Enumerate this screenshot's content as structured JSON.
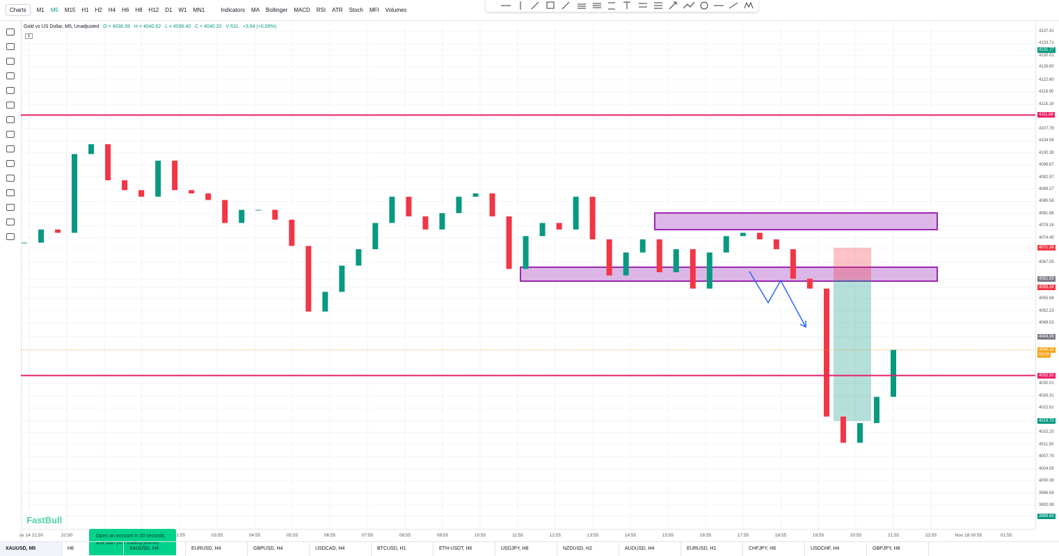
{
  "toolbar": {
    "charts": "Charts",
    "timeframes": [
      "M1",
      "M5",
      "M15",
      "H1",
      "H2",
      "H4",
      "H6",
      "H8",
      "H12",
      "D1",
      "W1",
      "MN1"
    ],
    "active_timeframe": "M5",
    "indicators_button": "Indicators",
    "indicators": [
      "MA",
      "Bollinger",
      "MACD",
      "RSI",
      "ATR",
      "Stoch",
      "MFI",
      "Volumes"
    ]
  },
  "legend": {
    "symbol": "Gold vs US Dollar, M5, Unadjusted",
    "open": "O = 4036.59",
    "high": "H = 4040.62",
    "low": "L = 4036.40",
    "close": "C = 4040.32",
    "volume": "V 631",
    "change": "+3.64 (+0.09%)",
    "badge": "1"
  },
  "price_axis": [
    {
      "label": "4137.41"
    },
    {
      "label": "4133.71"
    },
    {
      "label": "4131.77",
      "color": "#089981"
    },
    {
      "label": "4130.01"
    },
    {
      "label": "4126.60"
    },
    {
      "label": "4122.60"
    },
    {
      "label": "4118.90"
    },
    {
      "label": "4115.19"
    },
    {
      "label": "4111.88",
      "color": "#e91e63"
    },
    {
      "label": "4107.78"
    },
    {
      "label": "4104.08"
    },
    {
      "label": "4100.38"
    },
    {
      "label": "4096.67"
    },
    {
      "label": "4092.97"
    },
    {
      "label": "4089.27"
    },
    {
      "label": "4085.56"
    },
    {
      "label": "4081.86"
    },
    {
      "label": "4078.16"
    },
    {
      "label": "4074.45"
    },
    {
      "label": "4071.36",
      "color": "#f23645"
    },
    {
      "label": "4067.05"
    },
    {
      "label": "4061.89",
      "color": "#787b86"
    },
    {
      "label": "4059.34",
      "color": "#f23645"
    },
    {
      "label": "4055.94"
    },
    {
      "label": "4052.23"
    },
    {
      "label": "4048.53"
    },
    {
      "label": "4044.38",
      "color": "#787b86"
    },
    {
      "label": "4040.32",
      "color": "#f7a21b"
    },
    {
      "label": "4032.50",
      "color": "#e91e63"
    },
    {
      "label": "4030.01"
    },
    {
      "label": "4026.31"
    },
    {
      "label": "4022.61"
    },
    {
      "label": "4018.70",
      "color": "#089981"
    },
    {
      "label": "4015.20"
    },
    {
      "label": "4011.50"
    },
    {
      "label": "4007.79"
    },
    {
      "label": "4004.09"
    },
    {
      "label": "4000.39"
    },
    {
      "label": "3996.68"
    },
    {
      "label": "3992.98"
    },
    {
      "label": "3989.63",
      "color": "#089981"
    }
  ],
  "countdown": "03:09",
  "time_axis": [
    "ov 14 21:50",
    "22:50",
    "02:55",
    "03:55",
    "04:55",
    "05:55",
    "06:55",
    "07:55",
    "08:55",
    "09:55",
    "10:55",
    "11:55",
    "12:55",
    "13:55",
    "14:55",
    "15:55",
    "16:55",
    "17:55",
    "18:55",
    "19:55",
    "20:55",
    "21:55",
    "22:55",
    "Nov 18 00:55",
    "01:55"
  ],
  "candles": {
    "closes": [
      4073,
      4077,
      4076,
      4100,
      4103,
      4092,
      4089,
      4087,
      4098,
      4089,
      4088,
      4086,
      4079,
      4083,
      4083,
      4080,
      4072,
      4052,
      4058,
      4066,
      4071,
      4079,
      4087,
      4081,
      4077,
      4082,
      4087,
      4088,
      4081,
      4065,
      4075,
      4079,
      4077,
      4087,
      4074,
      4063,
      4070,
      4074,
      4064,
      4071,
      4059,
      4070,
      4075,
      4076,
      4074,
      4071,
      4062,
      4059,
      4020,
      4012,
      4018,
      4026,
      4040.32
    ],
    "up_color": "#089981",
    "down_color": "#f23645"
  },
  "horizontal_lines": [
    4111.88,
    4032.5
  ],
  "watermark": "FastBull",
  "promo": "Open an account in 30 seconds and start your trading journey",
  "tabs": [
    "XAUUSD, M5",
    "H8",
    "XAUUSD, H4",
    "EURUSD, H4",
    "GBPUSD, H4",
    "USDCAD, H4",
    "BTCUSD, H1",
    "ETH-USDT, H6",
    "USDJPY, H8",
    "NZDUSD, H2",
    "AUDUSD, H4",
    "EURUSD, H1",
    "CHFJPY, H6",
    "USDCHF, H4",
    "GBPJPY, H8"
  ]
}
